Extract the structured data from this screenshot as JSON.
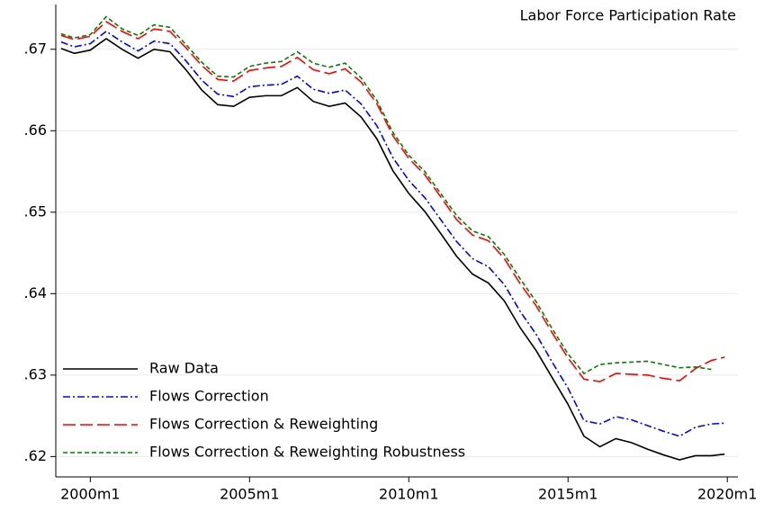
{
  "chart_data": {
    "type": "line",
    "title": "Labor Force Participation Rate",
    "x": [
      469,
      474,
      480,
      486,
      492,
      498,
      504,
      510,
      516,
      522,
      528,
      534,
      540,
      546,
      552,
      558,
      564,
      570,
      576,
      582,
      588,
      594,
      600,
      606,
      612,
      618,
      624,
      630,
      636,
      642,
      648,
      654,
      660,
      666,
      672,
      678,
      684,
      690,
      696,
      702,
      708,
      714,
      719
    ],
    "series": [
      {
        "name": "Raw Data",
        "color": "#000000",
        "style": "solid",
        "values": [
          0.6701,
          0.6695,
          0.6699,
          0.6713,
          0.67,
          0.6689,
          0.67,
          0.6697,
          0.6675,
          0.665,
          0.6632,
          0.663,
          0.6641,
          0.6643,
          0.6643,
          0.6653,
          0.6636,
          0.663,
          0.6634,
          0.6617,
          0.659,
          0.6551,
          0.6523,
          0.6501,
          0.6474,
          0.6446,
          0.6424,
          0.6413,
          0.6391,
          0.6358,
          0.633,
          0.6297,
          0.6264,
          0.6225,
          0.6212,
          0.6222,
          0.6217,
          0.6209,
          0.6202,
          0.6196,
          0.6201,
          0.6201,
          0.6203
        ]
      },
      {
        "name": "Flows Correction",
        "color": "#0000ff",
        "style": "dashdot",
        "values": [
          0.6709,
          0.6703,
          0.6707,
          0.6722,
          0.6709,
          0.6698,
          0.671,
          0.6707,
          0.6686,
          0.6662,
          0.6645,
          0.6642,
          0.6654,
          0.6656,
          0.6657,
          0.6667,
          0.6651,
          0.6646,
          0.665,
          0.6633,
          0.6606,
          0.6567,
          0.6539,
          0.6518,
          0.6491,
          0.6464,
          0.6443,
          0.6433,
          0.6411,
          0.6378,
          0.635,
          0.6316,
          0.6284,
          0.6244,
          0.624,
          0.6249,
          0.6245,
          0.6238,
          0.6231,
          0.6225,
          0.6236,
          0.624,
          0.6241
        ]
      },
      {
        "name": "Flows Correction & Reweighting",
        "color": "#ff0000",
        "style": "longdash",
        "values": [
          0.6717,
          0.6712,
          0.6716,
          0.6734,
          0.6722,
          0.6713,
          0.6725,
          0.6722,
          0.6702,
          0.668,
          0.6663,
          0.6661,
          0.6674,
          0.6677,
          0.6679,
          0.669,
          0.6675,
          0.667,
          0.6676,
          0.666,
          0.6633,
          0.6594,
          0.6566,
          0.6546,
          0.6519,
          0.6491,
          0.6472,
          0.6465,
          0.6443,
          0.6412,
          0.6385,
          0.6352,
          0.6321,
          0.6295,
          0.6292,
          0.6302,
          0.6301,
          0.63,
          0.6296,
          0.6293,
          0.6308,
          0.6318,
          0.6322
        ]
      },
      {
        "name": "Flows Correction & Reweighting Robustness",
        "color": "#008000",
        "style": "dash",
        "values": [
          0.6719,
          0.6714,
          0.6718,
          0.674,
          0.6725,
          0.6717,
          0.673,
          0.6727,
          0.6706,
          0.6684,
          0.6667,
          0.6666,
          0.6679,
          0.6683,
          0.6685,
          0.6697,
          0.6683,
          0.6678,
          0.6683,
          0.6665,
          0.6637,
          0.6598,
          0.657,
          0.655,
          0.6523,
          0.6496,
          0.6477,
          0.647,
          0.6448,
          0.6418,
          0.639,
          0.6357,
          0.6326,
          0.6302,
          0.6313,
          0.6315,
          0.6316,
          0.6317,
          0.6313,
          0.6309,
          0.631,
          0.6307,
          null
        ]
      }
    ],
    "xlim": [
      467,
      724
    ],
    "xticks": [
      {
        "value": 480,
        "label": "2000m1"
      },
      {
        "value": 540,
        "label": "2005m1"
      },
      {
        "value": 600,
        "label": "2010m1"
      },
      {
        "value": 660,
        "label": "2015m1"
      },
      {
        "value": 720,
        "label": "2020m1"
      }
    ],
    "ylim": [
      0.6175,
      0.6755
    ],
    "yticks": [
      {
        "value": 0.62,
        "label": ".62"
      },
      {
        "value": 0.63,
        "label": ".63"
      },
      {
        "value": 0.64,
        "label": ".64"
      },
      {
        "value": 0.65,
        "label": ".65"
      },
      {
        "value": 0.66,
        "label": ".66"
      },
      {
        "value": 0.67,
        "label": ".67"
      }
    ],
    "grid": true,
    "legend": "lower left"
  }
}
